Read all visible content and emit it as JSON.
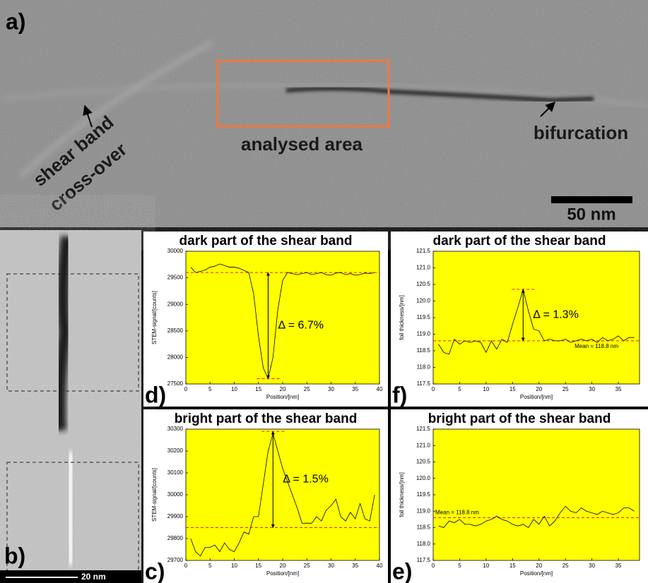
{
  "panel_a": {
    "label": "a)",
    "annotations": [
      "shear band",
      "cross-over",
      "analysed area",
      "bifurcation"
    ],
    "scale_bar": "50 nm"
  },
  "panel_b": {
    "label": "b)",
    "scale_bar": "20 nm"
  },
  "chart_data": [
    {
      "type": "line",
      "title": "dark part of the shear band",
      "panel_label": "d)",
      "x_label": "Position/[nm]",
      "y_label": "STEM-signal/[counts]",
      "color": "#000000",
      "ref_color": "#e02020",
      "x": [
        1,
        2,
        3,
        4,
        5,
        6,
        7,
        8,
        9,
        10,
        11,
        12,
        13,
        14,
        15,
        16,
        17,
        18,
        19,
        20,
        21,
        22,
        23,
        24,
        25,
        26,
        27,
        28,
        29,
        30,
        31,
        32,
        33,
        34,
        35,
        36,
        37,
        38,
        39
      ],
      "values": [
        29700,
        29600,
        29620,
        29650,
        29700,
        29720,
        29760,
        29730,
        29700,
        29700,
        29680,
        29640,
        29600,
        29200,
        28400,
        27800,
        27600,
        28000,
        28900,
        29450,
        29600,
        29580,
        29560,
        29580,
        29600,
        29560,
        29580,
        29600,
        29560,
        29550,
        29590,
        29600,
        29560,
        29580,
        29550,
        29560,
        29590,
        29580,
        29600
      ],
      "xlim": [
        0,
        40
      ],
      "xticks": [
        0,
        5,
        10,
        15,
        20,
        25,
        30,
        35,
        40
      ],
      "ylim": [
        27500,
        30000
      ],
      "yticks": [
        27500,
        28000,
        28500,
        29000,
        29500,
        30000
      ],
      "delta": {
        "x": 17,
        "from": 29600,
        "to": 27600,
        "label": "Δ = 6.7%"
      }
    },
    {
      "type": "line",
      "title": "dark part of the shear band",
      "panel_label": "f)",
      "x_label": "Position/[nm]",
      "y_label": "foil thickness/[nm]",
      "color": "#000000",
      "ref_color": "#e02020",
      "x": [
        1,
        2,
        3,
        4,
        5,
        6,
        7,
        8,
        9,
        10,
        11,
        12,
        13,
        14,
        15,
        16,
        17,
        18,
        19,
        20,
        21,
        22,
        23,
        24,
        25,
        26,
        27,
        28,
        29,
        30,
        31,
        32,
        33,
        34,
        35,
        36,
        37,
        38
      ],
      "values": [
        118.7,
        118.45,
        118.4,
        118.85,
        118.7,
        118.8,
        118.75,
        118.8,
        118.75,
        118.45,
        118.8,
        118.55,
        118.85,
        118.75,
        119.3,
        119.8,
        120.35,
        119.7,
        119.15,
        119.1,
        118.8,
        118.85,
        118.8,
        118.8,
        118.85,
        118.75,
        118.8,
        118.85,
        118.8,
        118.85,
        118.75,
        118.9,
        118.8,
        118.85,
        118.95,
        118.8,
        118.9,
        118.9
      ],
      "xlim": [
        0,
        39
      ],
      "xticks": [
        0,
        5,
        10,
        15,
        20,
        25,
        30,
        35
      ],
      "ylim": [
        117.5,
        121.5
      ],
      "yticks": [
        117.5,
        {
          "value": 118,
          "label": "118.0"
        },
        118.5,
        {
          "value": 119,
          "label": "119.0"
        },
        119.5,
        {
          "value": 120,
          "label": "120.0"
        },
        120.5,
        {
          "value": 121,
          "label": "121.0"
        },
        121.5
      ],
      "mean": {
        "value": 118.8,
        "label": "Mean = 118.8 nm"
      },
      "delta": {
        "x": 17,
        "from": 118.8,
        "to": 120.35,
        "label": "Δ = 1.3%"
      }
    },
    {
      "type": "line",
      "title": "bright part of the shear band",
      "panel_label": "c)",
      "x_label": "Position/[nm]",
      "y_label": "STEM-signal/[counts]",
      "color": "#000000",
      "ref_color": "#e02020",
      "x": [
        1,
        2,
        3,
        4,
        5,
        6,
        7,
        8,
        9,
        10,
        11,
        12,
        13,
        14,
        15,
        16,
        17,
        18,
        19,
        20,
        21,
        22,
        23,
        24,
        25,
        26,
        27,
        28,
        29,
        30,
        31,
        32,
        33,
        34,
        35,
        36,
        37,
        38,
        39
      ],
      "values": [
        29800,
        29740,
        29720,
        29760,
        29760,
        29770,
        29740,
        29780,
        29750,
        29740,
        29780,
        29830,
        29820,
        29900,
        29900,
        30050,
        30200,
        30280,
        30200,
        30120,
        30060,
        30000,
        29940,
        29870,
        29870,
        29870,
        29900,
        29880,
        29930,
        29950,
        29980,
        29900,
        29880,
        29920,
        29890,
        29960,
        29890,
        29880,
        30000
      ],
      "xlim": [
        0,
        40
      ],
      "xticks": [
        0,
        5,
        10,
        15,
        20,
        25,
        30,
        35,
        40
      ],
      "ylim": [
        29700,
        30300
      ],
      "yticks": [
        29700,
        29800,
        29900,
        30000,
        30100,
        30200,
        30300
      ],
      "delta": {
        "x": 18,
        "from": 29850,
        "to": 30290,
        "label": "Δ = 1.5%"
      }
    },
    {
      "type": "line",
      "title": "bright part of the shear band",
      "panel_label": "e)",
      "x_label": "Position/[nm]",
      "y_label": "foil thickness/[nm]",
      "color": "#000000",
      "ref_color": "#e02020",
      "x": [
        1,
        2,
        3,
        4,
        5,
        6,
        7,
        8,
        9,
        10,
        11,
        12,
        13,
        14,
        15,
        16,
        17,
        18,
        19,
        20,
        21,
        22,
        23,
        24,
        25,
        26,
        27,
        28,
        29,
        30,
        31,
        32,
        33,
        34,
        35,
        36,
        37,
        38
      ],
      "values": [
        118.55,
        118.5,
        118.7,
        118.65,
        118.75,
        118.6,
        118.6,
        118.55,
        118.6,
        118.7,
        118.75,
        118.85,
        118.75,
        118.7,
        118.6,
        118.55,
        118.6,
        118.5,
        118.75,
        118.6,
        118.85,
        118.55,
        118.7,
        118.95,
        119.15,
        119.0,
        118.95,
        119.1,
        119.0,
        118.95,
        118.9,
        119.0,
        118.95,
        118.9,
        118.95,
        119.1,
        119.1,
        119.0
      ],
      "xlim": [
        0,
        39
      ],
      "xticks": [
        0,
        5,
        10,
        15,
        20,
        25,
        30,
        35
      ],
      "ylim": [
        117.5,
        121.5
      ],
      "yticks": [
        117.5,
        {
          "value": 118,
          "label": "118.0"
        },
        118.5,
        {
          "value": 119,
          "label": "119.0"
        },
        119.5,
        {
          "value": 120,
          "label": "120.0"
        },
        120.5,
        {
          "value": 121,
          "label": "121.0"
        },
        121.5
      ],
      "mean": {
        "value": 118.8,
        "label": "Mean = 118.8 nm"
      }
    }
  ]
}
